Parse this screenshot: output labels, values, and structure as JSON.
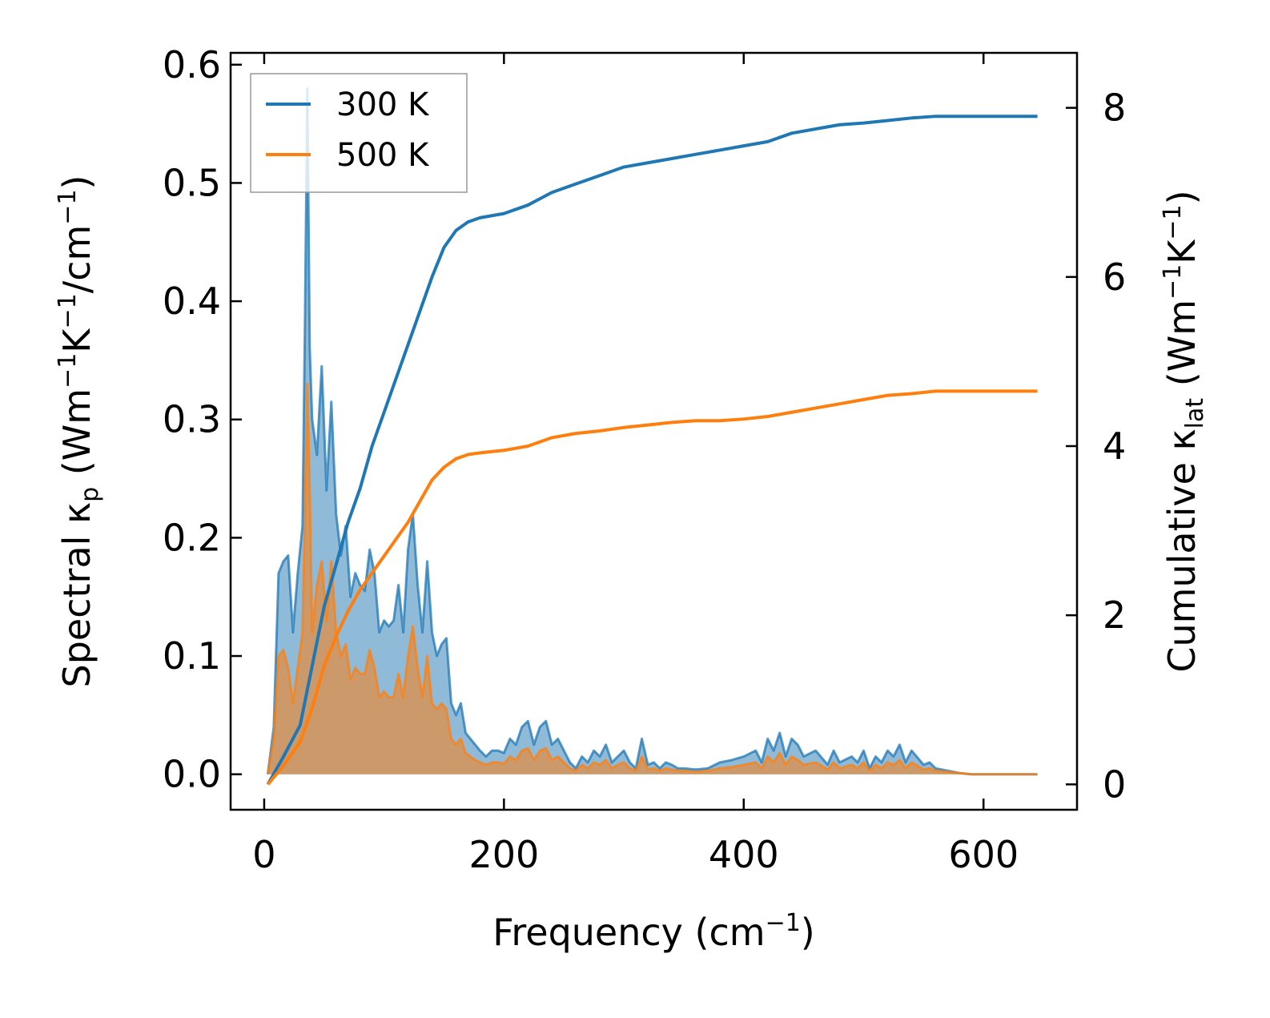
{
  "chart_data": {
    "type": "line",
    "xlabel": {
      "main": "Frequency (cm",
      "sup": "−1",
      "close": ")"
    },
    "y_left_label": {
      "a": "Spectral κ",
      "sub": "p",
      "b": " (Wm",
      "s1": "−1",
      "c": "K",
      "s2": "−1",
      "d": "/cm",
      "s3": "−1",
      "e": ")"
    },
    "y_right_label": {
      "a": "Cumulative κ",
      "sub": "lat",
      "b": " (Wm",
      "s1": "−1",
      "c": "K",
      "s2": "−1",
      "e": ")"
    },
    "xlim": [
      -28,
      678
    ],
    "ylim_left": [
      -0.03,
      0.61
    ],
    "ylim_right": [
      -0.3,
      8.65
    ],
    "x_ticks": [
      0,
      200,
      400,
      600
    ],
    "x_tick_labels": [
      "0",
      "200",
      "400",
      "600"
    ],
    "y_left_ticks": [
      0.0,
      0.1,
      0.2,
      0.3,
      0.4,
      0.5,
      0.6
    ],
    "y_left_tick_labels": [
      "0.0",
      "0.1",
      "0.2",
      "0.3",
      "0.4",
      "0.5",
      "0.6"
    ],
    "y_right_ticks": [
      0,
      2,
      4,
      6,
      8
    ],
    "y_right_tick_labels": [
      "0",
      "2",
      "4",
      "6",
      "8"
    ],
    "legend": {
      "placement": "top-left",
      "entries": [
        "300 K",
        "500 K"
      ]
    },
    "series": [
      {
        "name": "300 K",
        "color": "#1f77b4",
        "spectral_x": [
          3,
          8,
          12,
          16,
          20,
          24,
          28,
          32,
          34,
          36,
          38,
          40,
          44,
          48,
          52,
          56,
          60,
          64,
          68,
          72,
          76,
          80,
          84,
          88,
          92,
          96,
          100,
          104,
          108,
          112,
          116,
          120,
          124,
          128,
          132,
          136,
          140,
          144,
          148,
          152,
          156,
          160,
          164,
          168,
          172,
          176,
          180,
          185,
          190,
          195,
          200,
          205,
          210,
          215,
          220,
          225,
          230,
          235,
          240,
          245,
          250,
          255,
          260,
          265,
          270,
          275,
          280,
          285,
          290,
          295,
          300,
          305,
          310,
          315,
          320,
          325,
          330,
          335,
          340,
          345,
          350,
          360,
          370,
          380,
          390,
          400,
          410,
          415,
          420,
          425,
          430,
          435,
          440,
          445,
          450,
          460,
          470,
          475,
          480,
          490,
          495,
          500,
          505,
          510,
          515,
          520,
          525,
          530,
          535,
          540,
          550,
          555,
          560,
          570,
          580,
          590,
          600,
          620,
          645
        ],
        "spectral_y": [
          0.0,
          0.04,
          0.17,
          0.18,
          0.185,
          0.12,
          0.17,
          0.21,
          0.38,
          0.58,
          0.36,
          0.3,
          0.27,
          0.345,
          0.24,
          0.315,
          0.22,
          0.185,
          0.21,
          0.15,
          0.17,
          0.16,
          0.155,
          0.19,
          0.17,
          0.12,
          0.13,
          0.125,
          0.13,
          0.16,
          0.12,
          0.19,
          0.22,
          0.16,
          0.12,
          0.18,
          0.12,
          0.1,
          0.11,
          0.115,
          0.06,
          0.05,
          0.06,
          0.035,
          0.03,
          0.025,
          0.02,
          0.015,
          0.02,
          0.02,
          0.018,
          0.03,
          0.025,
          0.04,
          0.045,
          0.025,
          0.04,
          0.045,
          0.025,
          0.03,
          0.02,
          0.01,
          0.005,
          0.015,
          0.01,
          0.02,
          0.015,
          0.025,
          0.01,
          0.015,
          0.02,
          0.01,
          0.005,
          0.03,
          0.008,
          0.01,
          0.005,
          0.01,
          0.008,
          0.005,
          0.005,
          0.004,
          0.005,
          0.01,
          0.012,
          0.015,
          0.02,
          0.01,
          0.03,
          0.02,
          0.035,
          0.015,
          0.03,
          0.025,
          0.015,
          0.02,
          0.008,
          0.02,
          0.01,
          0.015,
          0.01,
          0.02,
          0.005,
          0.015,
          0.01,
          0.02,
          0.015,
          0.025,
          0.01,
          0.02,
          0.008,
          0.01,
          0.005,
          0.003,
          0.001,
          0.0,
          0.0,
          0.0,
          0.0
        ],
        "cumulative_x": [
          3,
          15,
          30,
          40,
          50,
          60,
          70,
          80,
          90,
          100,
          110,
          120,
          130,
          140,
          150,
          160,
          170,
          180,
          200,
          220,
          240,
          260,
          280,
          300,
          320,
          340,
          360,
          380,
          400,
          420,
          440,
          460,
          480,
          500,
          520,
          540,
          560,
          580,
          600,
          620,
          645
        ],
        "cumulative_y": [
          0,
          0.3,
          0.7,
          1.4,
          2.1,
          2.6,
          3.1,
          3.5,
          4.0,
          4.4,
          4.8,
          5.2,
          5.6,
          6.0,
          6.35,
          6.55,
          6.65,
          6.7,
          6.75,
          6.85,
          7.0,
          7.1,
          7.2,
          7.3,
          7.35,
          7.4,
          7.45,
          7.5,
          7.55,
          7.6,
          7.7,
          7.75,
          7.8,
          7.82,
          7.85,
          7.88,
          7.9,
          7.9,
          7.9,
          7.9,
          7.9
        ]
      },
      {
        "name": "500 K",
        "color": "#ff7f0e",
        "spectral_x": [
          3,
          8,
          12,
          16,
          20,
          24,
          28,
          32,
          34,
          36,
          38,
          40,
          44,
          48,
          52,
          56,
          60,
          64,
          68,
          72,
          76,
          80,
          84,
          88,
          92,
          96,
          100,
          104,
          108,
          112,
          116,
          120,
          124,
          128,
          132,
          136,
          140,
          144,
          148,
          152,
          156,
          160,
          164,
          168,
          172,
          176,
          180,
          185,
          190,
          195,
          200,
          205,
          210,
          215,
          220,
          225,
          230,
          235,
          240,
          245,
          250,
          255,
          260,
          265,
          270,
          275,
          280,
          285,
          290,
          295,
          300,
          305,
          310,
          315,
          320,
          325,
          330,
          335,
          340,
          345,
          350,
          360,
          370,
          380,
          390,
          400,
          410,
          415,
          420,
          425,
          430,
          435,
          440,
          445,
          450,
          460,
          470,
          475,
          480,
          490,
          495,
          500,
          505,
          510,
          515,
          520,
          525,
          530,
          535,
          540,
          550,
          555,
          560,
          570,
          580,
          590,
          600,
          620,
          645
        ],
        "spectral_y": [
          0.0,
          0.03,
          0.1,
          0.105,
          0.09,
          0.06,
          0.09,
          0.12,
          0.22,
          0.33,
          0.24,
          0.12,
          0.16,
          0.18,
          0.13,
          0.18,
          0.12,
          0.1,
          0.11,
          0.08,
          0.09,
          0.085,
          0.085,
          0.105,
          0.09,
          0.065,
          0.07,
          0.065,
          0.065,
          0.085,
          0.065,
          0.1,
          0.125,
          0.09,
          0.065,
          0.1,
          0.06,
          0.055,
          0.06,
          0.055,
          0.03,
          0.025,
          0.03,
          0.018,
          0.015,
          0.012,
          0.01,
          0.008,
          0.01,
          0.01,
          0.009,
          0.015,
          0.012,
          0.02,
          0.022,
          0.012,
          0.02,
          0.022,
          0.012,
          0.015,
          0.01,
          0.005,
          0.003,
          0.008,
          0.005,
          0.01,
          0.008,
          0.012,
          0.005,
          0.008,
          0.01,
          0.005,
          0.003,
          0.015,
          0.004,
          0.005,
          0.003,
          0.005,
          0.004,
          0.003,
          0.003,
          0.002,
          0.003,
          0.005,
          0.006,
          0.008,
          0.01,
          0.005,
          0.015,
          0.01,
          0.018,
          0.008,
          0.015,
          0.012,
          0.008,
          0.01,
          0.004,
          0.01,
          0.005,
          0.008,
          0.005,
          0.01,
          0.003,
          0.008,
          0.005,
          0.01,
          0.008,
          0.012,
          0.005,
          0.01,
          0.004,
          0.005,
          0.003,
          0.002,
          0.001,
          0.0,
          0.0,
          0.0,
          0.0
        ],
        "cumulative_x": [
          3,
          15,
          30,
          40,
          50,
          60,
          70,
          80,
          90,
          100,
          110,
          120,
          130,
          140,
          150,
          160,
          170,
          180,
          200,
          220,
          240,
          260,
          280,
          300,
          320,
          340,
          360,
          380,
          400,
          420,
          440,
          460,
          480,
          500,
          520,
          540,
          560,
          580,
          600,
          620,
          645
        ],
        "cumulative_y": [
          0,
          0.2,
          0.5,
          0.9,
          1.4,
          1.75,
          2.05,
          2.3,
          2.5,
          2.7,
          2.9,
          3.1,
          3.35,
          3.6,
          3.75,
          3.85,
          3.9,
          3.92,
          3.95,
          4.0,
          4.1,
          4.15,
          4.18,
          4.22,
          4.25,
          4.28,
          4.3,
          4.3,
          4.32,
          4.35,
          4.4,
          4.45,
          4.5,
          4.55,
          4.6,
          4.62,
          4.65,
          4.65,
          4.65,
          4.65,
          4.65
        ]
      }
    ]
  }
}
